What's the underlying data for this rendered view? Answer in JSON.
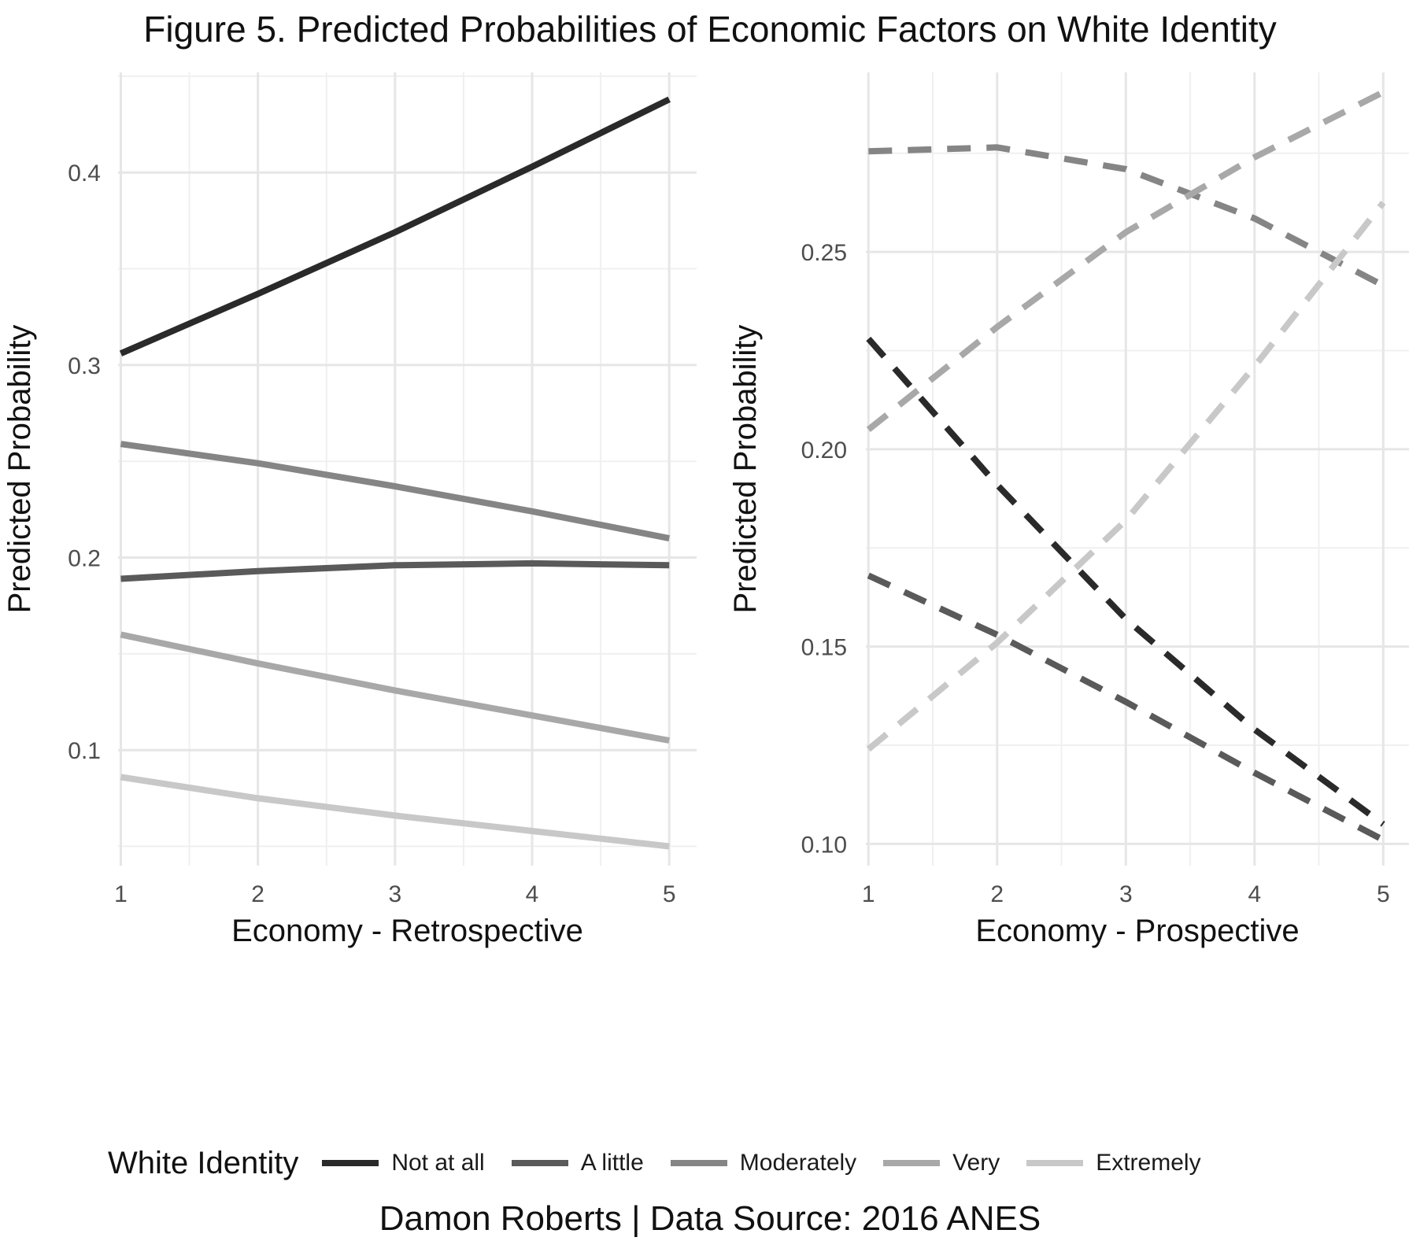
{
  "title": "Figure 5. Predicted Probabilities of Economic Factors on White Identity",
  "caption": "Damon Roberts | Data Source: 2016 ANES",
  "legend": {
    "title": "White Identity",
    "position": "bottom",
    "items": [
      {
        "label": "Not at all",
        "color": "#2a2a2a"
      },
      {
        "label": "A little",
        "color": "#5a5a5a"
      },
      {
        "label": "Moderately",
        "color": "#858585"
      },
      {
        "label": "Very",
        "color": "#a8a8a8"
      },
      {
        "label": "Extremely",
        "color": "#c8c8c8"
      }
    ]
  },
  "chart_data": [
    {
      "type": "line",
      "linestyle": "solid",
      "xlabel": "Economy - Retrospective",
      "ylabel": "Predicted Probability",
      "x": [
        1,
        2,
        3,
        4,
        5
      ],
      "xticks": [
        "1",
        "2",
        "3",
        "4",
        "5"
      ],
      "yticks": [
        0.1,
        0.2,
        0.3,
        0.4
      ],
      "ytick_labels": [
        "0.1",
        "0.2",
        "0.3",
        "0.4"
      ],
      "xlim": [
        0.98,
        5.2
      ],
      "ylim": [
        0.04,
        0.452
      ],
      "grid": true,
      "series": [
        {
          "name": "Not at all",
          "color": "#2a2a2a",
          "values": [
            0.306,
            0.337,
            0.369,
            0.403,
            0.438
          ]
        },
        {
          "name": "A little",
          "color": "#5a5a5a",
          "values": [
            0.189,
            0.193,
            0.196,
            0.197,
            0.196
          ]
        },
        {
          "name": "Moderately",
          "color": "#858585",
          "values": [
            0.259,
            0.249,
            0.237,
            0.224,
            0.21
          ]
        },
        {
          "name": "Very",
          "color": "#a8a8a8",
          "values": [
            0.16,
            0.145,
            0.131,
            0.118,
            0.105
          ]
        },
        {
          "name": "Extremely",
          "color": "#c8c8c8",
          "values": [
            0.086,
            0.075,
            0.066,
            0.058,
            0.05
          ]
        }
      ]
    },
    {
      "type": "line",
      "linestyle": "dashed",
      "xlabel": "Economy - Prospective",
      "ylabel": "Predicted Probability",
      "x": [
        1,
        2,
        3,
        4,
        5
      ],
      "xticks": [
        "1",
        "2",
        "3",
        "4",
        "5"
      ],
      "yticks": [
        0.1,
        0.15,
        0.2,
        0.25
      ],
      "ytick_labels": [
        "0.10",
        "0.15",
        "0.20",
        "0.25"
      ],
      "xlim": [
        0.98,
        5.2
      ],
      "ylim": [
        0.0945,
        0.2955
      ],
      "grid": true,
      "series": [
        {
          "name": "Not at all",
          "color": "#2a2a2a",
          "values": [
            0.228,
            0.191,
            0.157,
            0.129,
            0.105
          ]
        },
        {
          "name": "A little",
          "color": "#5a5a5a",
          "values": [
            0.168,
            0.153,
            0.136,
            0.118,
            0.101
          ]
        },
        {
          "name": "Moderately",
          "color": "#858585",
          "values": [
            0.2755,
            0.2765,
            0.271,
            0.2585,
            0.2415
          ]
        },
        {
          "name": "Very",
          "color": "#a8a8a8",
          "values": [
            0.205,
            0.231,
            0.255,
            0.274,
            0.2905
          ]
        },
        {
          "name": "Extremely",
          "color": "#c8c8c8",
          "values": [
            0.124,
            0.151,
            0.182,
            0.221,
            0.2625
          ]
        }
      ]
    }
  ]
}
